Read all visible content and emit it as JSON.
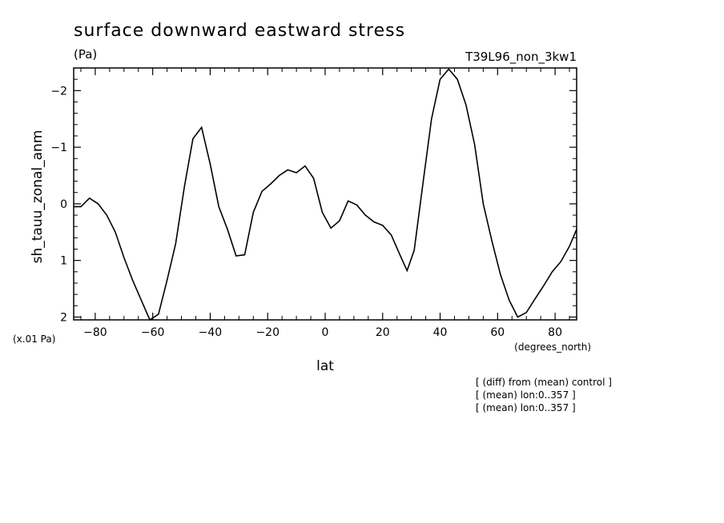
{
  "chart_data": {
    "type": "line",
    "title": "surface downward eastward stress",
    "units_label": "(Pa)",
    "run_label": "T39L96_non_3kw1",
    "xlabel": "lat",
    "x_units": "(degrees_north)",
    "ylabel": "sh_tauu_zonal_anm",
    "y_scale_note": "(x.01 Pa)",
    "y_inverted": true,
    "xlim": [
      -87.5,
      87.5
    ],
    "ylim": [
      2.05,
      -2.4
    ],
    "x_ticks": [
      -80,
      -60,
      -40,
      -20,
      0,
      20,
      40,
      60,
      80
    ],
    "x_tick_labels": [
      "−80",
      "−60",
      "−40",
      "−20",
      "0",
      "20",
      "40",
      "60",
      "80"
    ],
    "y_ticks": [
      -2,
      -1,
      0,
      1,
      2
    ],
    "y_tick_labels": [
      "−2",
      "−1",
      "0",
      "1",
      "2"
    ],
    "grid": false,
    "series": [
      {
        "x": [
          -87.5,
          -85,
          -82,
          -79,
          -76,
          -73,
          -70,
          -67,
          -64,
          -61,
          -58,
          -55,
          -52,
          -49,
          -46,
          -43,
          -40,
          -37,
          -34,
          -31,
          -28,
          -25,
          -22,
          -19,
          -16,
          -13,
          -10,
          -7,
          -4,
          -1,
          2,
          5,
          8,
          11,
          14,
          17,
          20,
          23,
          26,
          28.5,
          31,
          34,
          37,
          40,
          43,
          46,
          49,
          52,
          55,
          58,
          61,
          64,
          67,
          70,
          73,
          76,
          79,
          82,
          85,
          87.5
        ],
        "y": [
          0.05,
          0.05,
          -0.1,
          0.0,
          0.2,
          0.5,
          0.95,
          1.35,
          1.7,
          2.05,
          1.95,
          1.35,
          0.7,
          -0.3,
          -1.15,
          -1.35,
          -0.7,
          0.05,
          0.45,
          0.92,
          0.9,
          0.15,
          -0.22,
          -0.35,
          -0.5,
          -0.6,
          -0.55,
          -0.67,
          -0.45,
          0.15,
          0.43,
          0.3,
          -0.05,
          0.02,
          0.2,
          0.32,
          0.38,
          0.55,
          0.9,
          1.18,
          0.82,
          -0.35,
          -1.5,
          -2.2,
          -2.38,
          -2.2,
          -1.75,
          -1.05,
          0.0,
          0.65,
          1.25,
          1.7,
          2.0,
          1.92,
          1.68,
          1.45,
          1.2,
          1.02,
          0.75,
          0.45
        ]
      }
    ]
  },
  "footnotes": [
    "[ (diff) from (mean) control ]",
    "[ (mean) lon:0..357 ]",
    "[ (mean) lon:0..357 ]"
  ],
  "colors": {
    "line": "#000000",
    "background": "#ffffff"
  }
}
